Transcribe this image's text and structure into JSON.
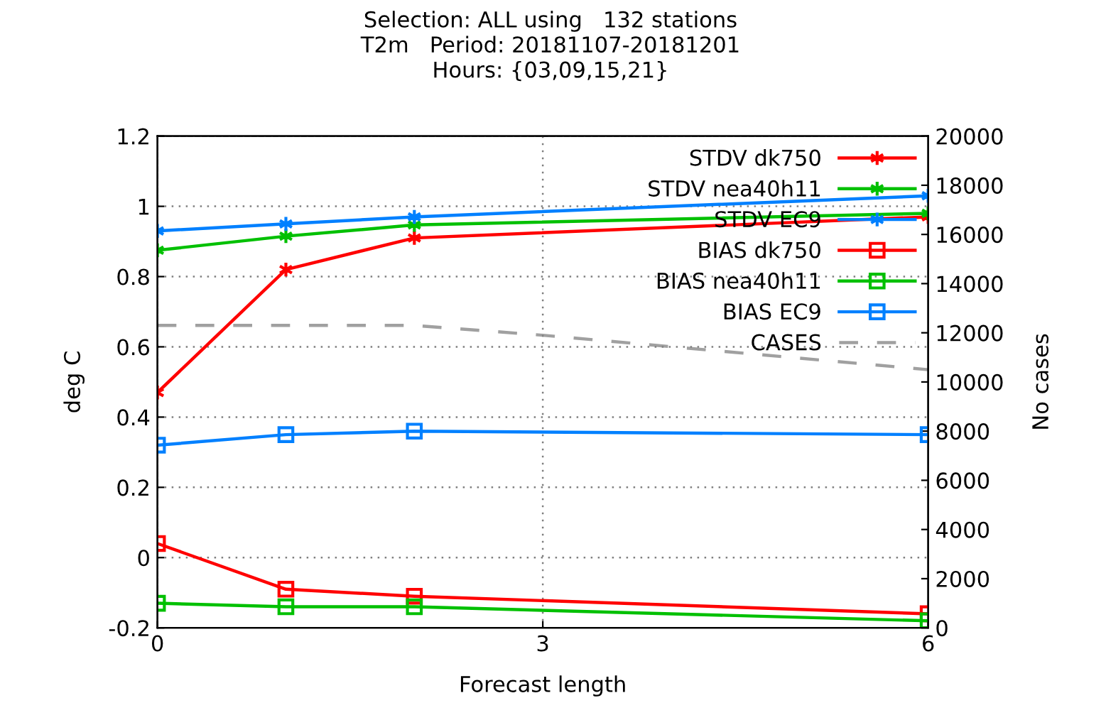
{
  "chart_data": {
    "type": "line",
    "title": "Selection: ALL using   132 stations",
    "subtitle": "T2m   Period: 20181107-20181201\nHours: {03,09,15,21}",
    "xlabel": "Forecast length",
    "ylabel": "deg C",
    "y2label": "No cases",
    "xlim": [
      0,
      6
    ],
    "xticks": [
      0,
      3,
      6
    ],
    "ylim": [
      -0.2,
      1.2
    ],
    "yticks": [
      -0.2,
      0,
      0.2,
      0.4,
      0.6,
      0.8,
      1,
      1.2
    ],
    "y2lim": [
      0,
      20000
    ],
    "y2ticks": [
      0,
      2000,
      4000,
      6000,
      8000,
      10000,
      12000,
      14000,
      16000,
      18000,
      20000
    ],
    "grid": true,
    "legend": "top right",
    "series": [
      {
        "name": "STDV dk750",
        "color": "#ff0000",
        "marker": "cross",
        "x": [
          0,
          1,
          2,
          6
        ],
        "values": [
          0.47,
          0.82,
          0.91,
          0.97
        ]
      },
      {
        "name": "STDV nea40h11",
        "color": "#00c000",
        "marker": "cross",
        "x": [
          0,
          1,
          2,
          6
        ],
        "values": [
          0.875,
          0.915,
          0.947,
          0.98
        ]
      },
      {
        "name": "STDV EC9",
        "color": "#0080ff",
        "marker": "cross",
        "x": [
          0,
          1,
          2,
          6
        ],
        "values": [
          0.93,
          0.95,
          0.97,
          1.03
        ]
      },
      {
        "name": "BIAS dk750",
        "color": "#ff0000",
        "marker": "square",
        "x": [
          0,
          1,
          2,
          6
        ],
        "values": [
          0.04,
          -0.09,
          -0.11,
          -0.16
        ]
      },
      {
        "name": "BIAS nea40h11",
        "color": "#00c000",
        "marker": "square",
        "x": [
          0,
          1,
          2,
          6
        ],
        "values": [
          -0.13,
          -0.14,
          -0.14,
          -0.18
        ]
      },
      {
        "name": "BIAS EC9",
        "color": "#0080ff",
        "marker": "square",
        "x": [
          0,
          1,
          2,
          6
        ],
        "values": [
          0.32,
          0.35,
          0.36,
          0.35
        ]
      },
      {
        "name": "CASES",
        "color": "#a0a0a0",
        "marker": "none",
        "line_style": "dashed",
        "axis": "y2",
        "x": [
          0,
          2,
          3,
          6
        ],
        "values": [
          12300,
          12300,
          11900,
          10500
        ]
      }
    ]
  }
}
